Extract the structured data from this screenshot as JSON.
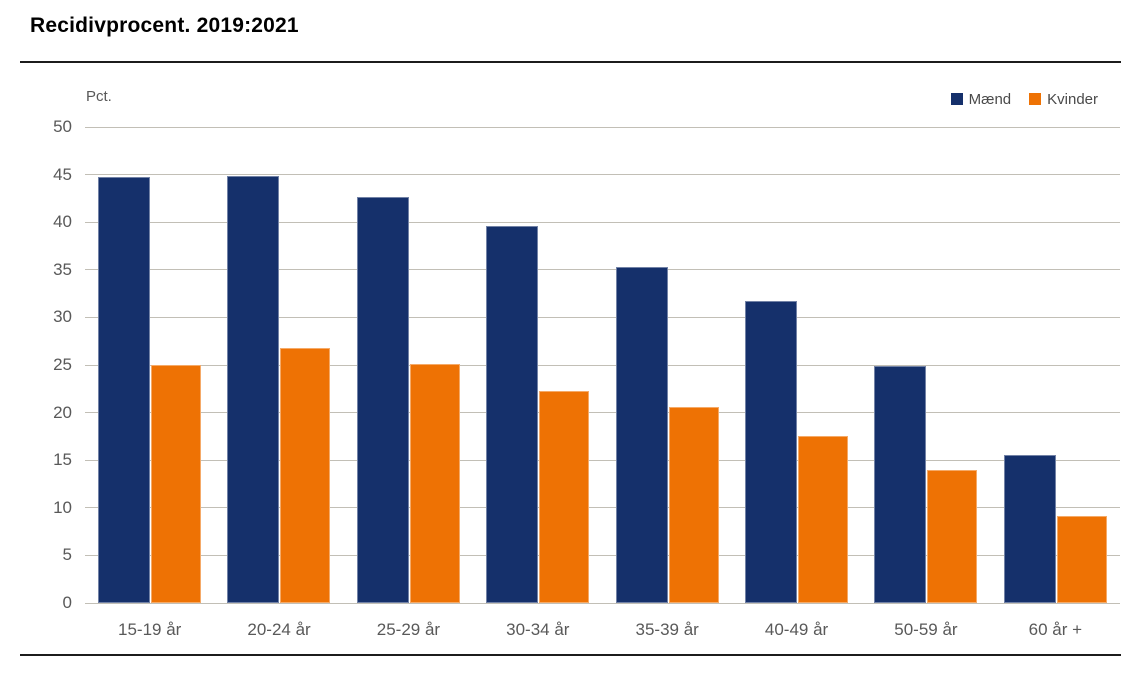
{
  "page": {
    "title": "Recidivprocent. 2019:2021"
  },
  "unit_label": "Pct.",
  "colors": {
    "maend": "#15306b",
    "kvinder": "#ee7204",
    "gridline": "#c2bfb6",
    "axis_text": "#595959",
    "rule": "#1c1c1c"
  },
  "chart_data": {
    "type": "bar",
    "title": "Recidivprocent. 2019:2021",
    "ylabel": "Pct.",
    "xlabel": "",
    "categories": [
      "15-19 år",
      "20-24 år",
      "25-29 år",
      "30-34 år",
      "35-39 år",
      "40-49 år",
      "50-59 år",
      "60 år +"
    ],
    "series": [
      {
        "name": "Mænd",
        "color": "#15306b",
        "values": [
          44.8,
          44.9,
          42.7,
          39.6,
          35.3,
          31.7,
          24.9,
          15.5
        ]
      },
      {
        "name": "Kvinder",
        "color": "#ee7204",
        "values": [
          25.0,
          26.8,
          25.1,
          22.3,
          20.6,
          17.5,
          14.0,
          9.1
        ]
      }
    ],
    "ylim": [
      0,
      50
    ],
    "ytick_step": 5,
    "grid": true,
    "legend_position": "top-right"
  }
}
